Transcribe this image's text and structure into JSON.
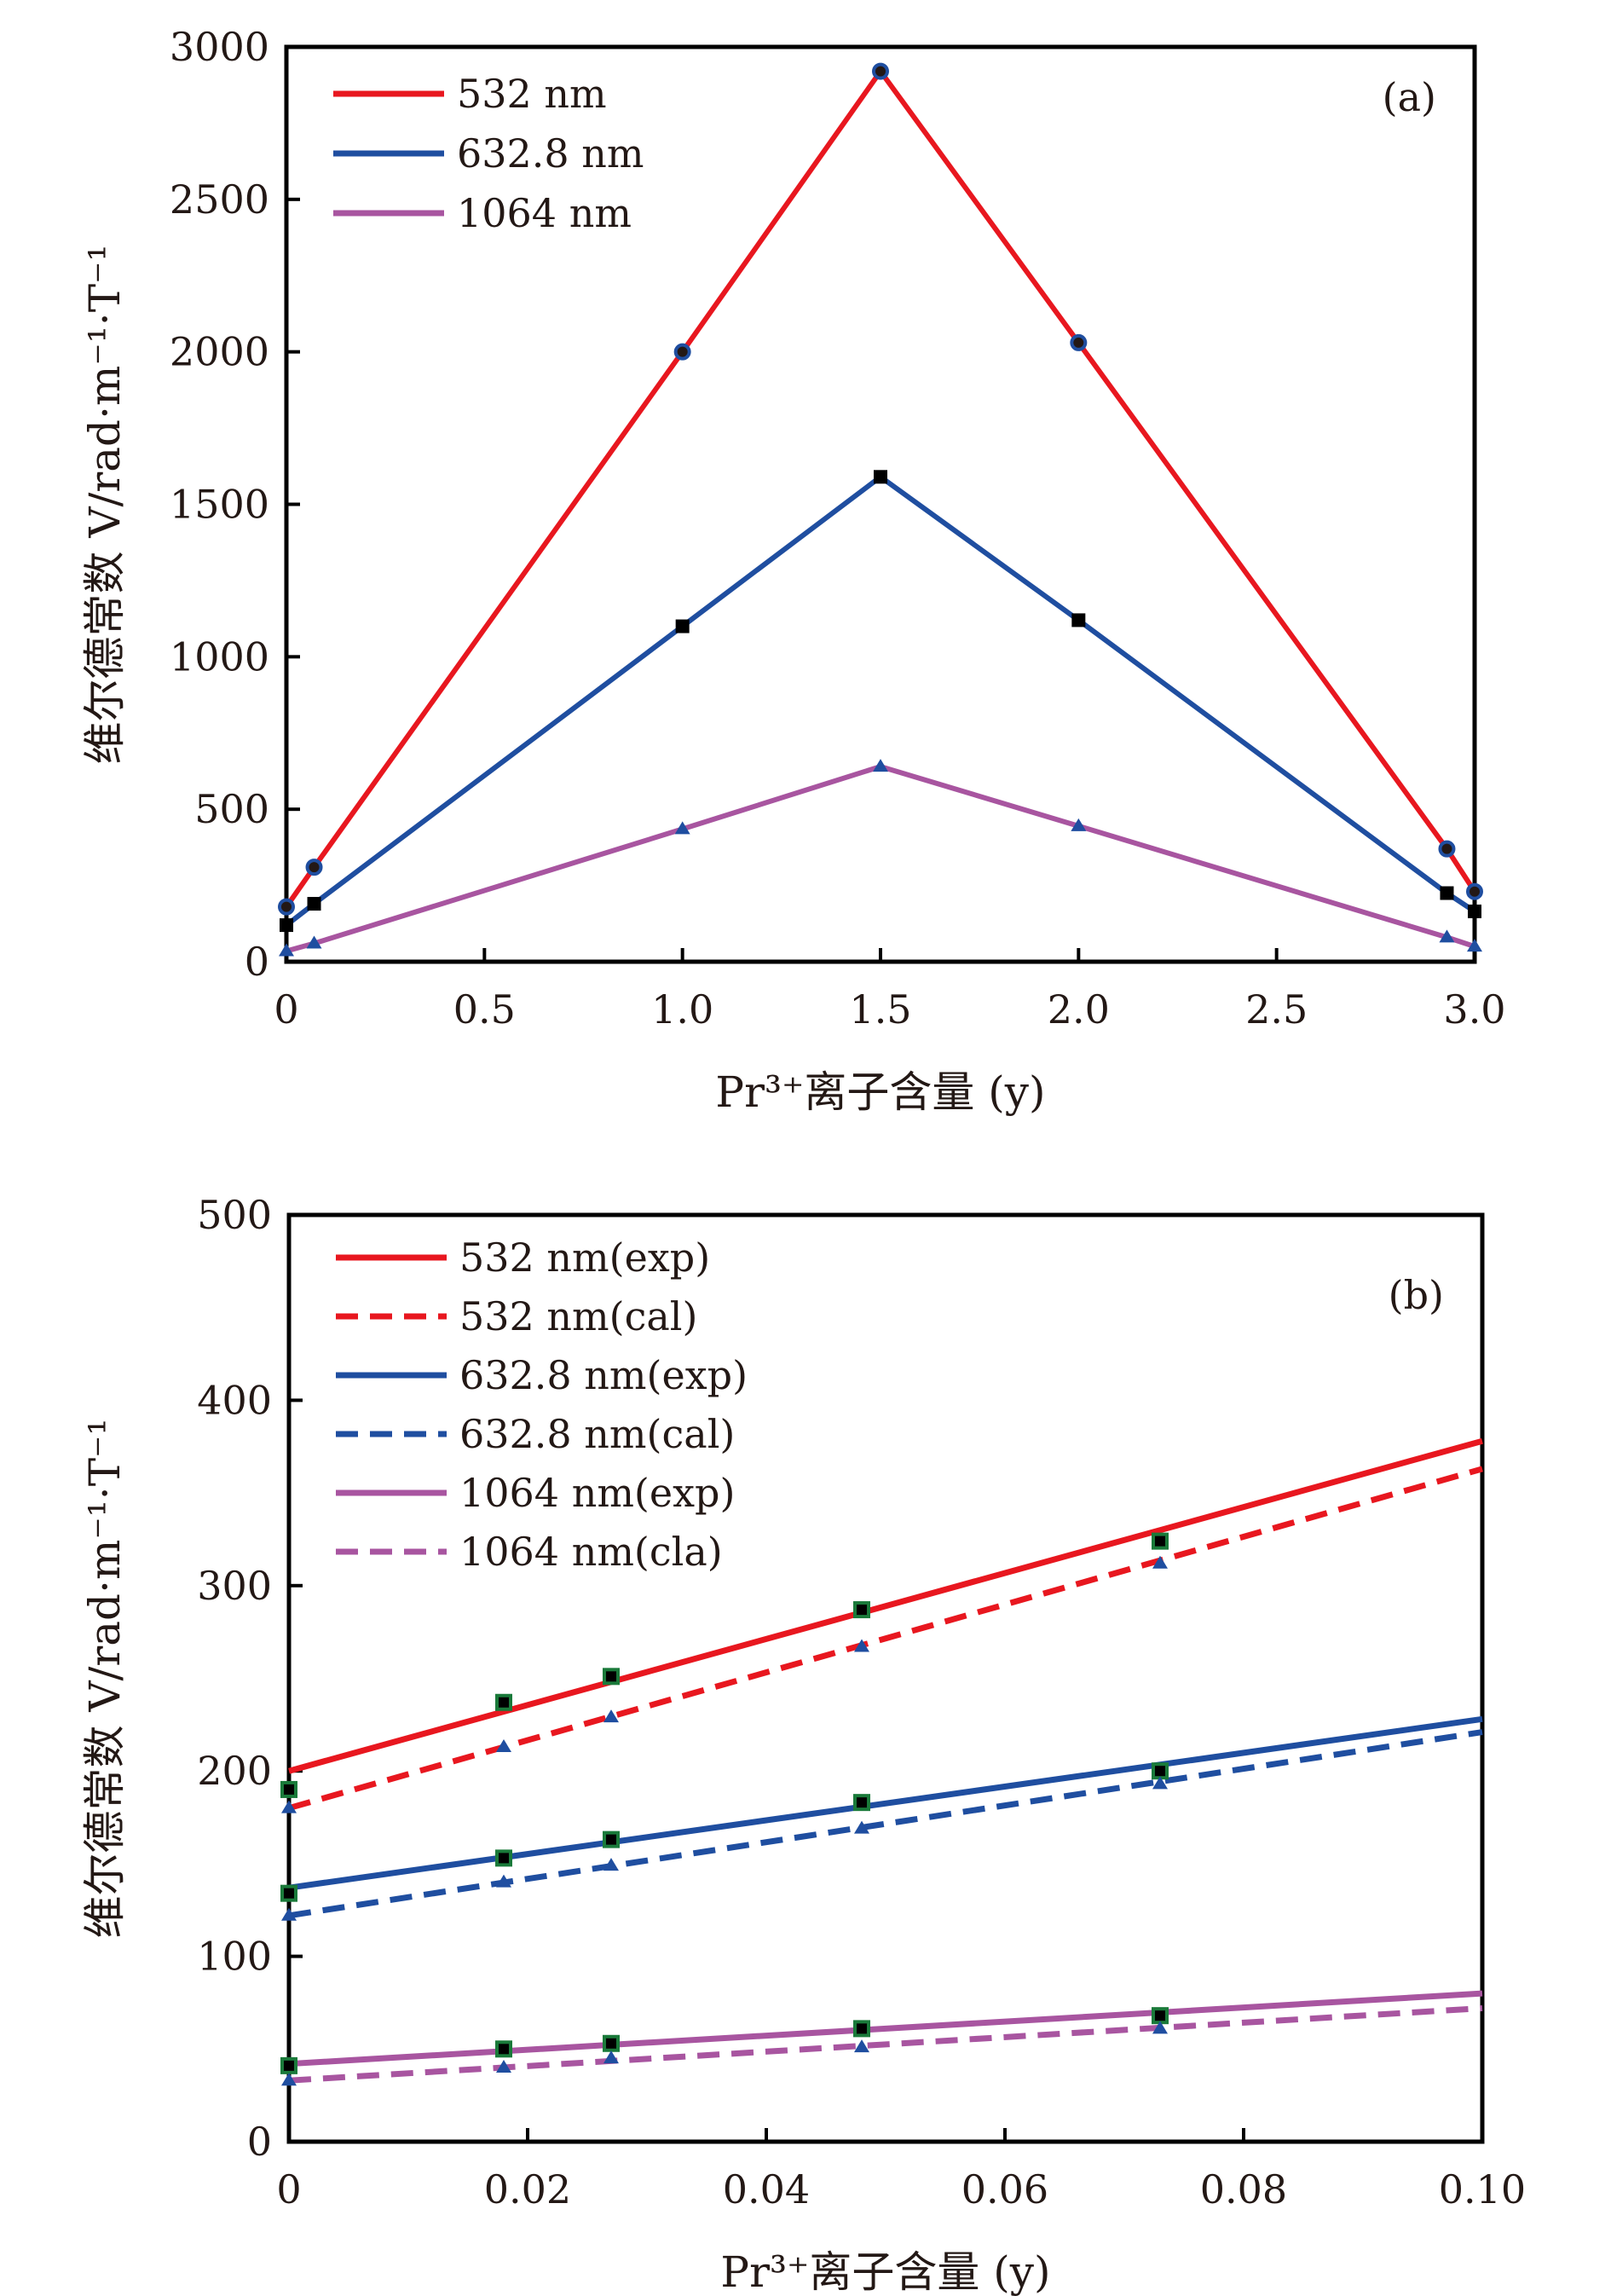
{
  "chart_data": [
    {
      "type": "line",
      "panel_label": "(a)",
      "xlabel": "Pr³⁺离子含量 (y)",
      "ylabel": "维尔德常数 V/rad·m⁻¹·T⁻¹",
      "xlim": [
        0,
        3.0
      ],
      "ylim": [
        0,
        3000
      ],
      "xticks": [
        0,
        0.5,
        1.0,
        1.5,
        2.0,
        2.5,
        3.0
      ],
      "xtick_labels": [
        "0",
        "0.5",
        "1.0",
        "1.5",
        "2.0",
        "2.5",
        "3.0"
      ],
      "yticks": [
        0,
        500,
        1000,
        1500,
        2000,
        2500,
        3000
      ],
      "ytick_labels": [
        "0",
        "500",
        "1000",
        "1500",
        "2000",
        "2500",
        "3000"
      ],
      "legend_position": "top-left",
      "x": [
        0,
        0.07,
        1.0,
        1.5,
        2.0,
        2.93,
        3.0
      ],
      "series": [
        {
          "name": "532 nm",
          "color": "#e8171f",
          "marker": "circle",
          "values": [
            180,
            310,
            2000,
            2920,
            2030,
            370,
            230
          ]
        },
        {
          "name": "632.8 nm",
          "color": "#1f4ea0",
          "marker": "square",
          "values": [
            120,
            190,
            1100,
            1590,
            1120,
            225,
            165
          ]
        },
        {
          "name": "1064 nm",
          "color": "#a855a0",
          "marker": "triangle",
          "values": [
            35,
            60,
            435,
            640,
            445,
            80,
            50
          ]
        }
      ]
    },
    {
      "type": "line",
      "panel_label": "(b)",
      "xlabel": "Pr³⁺离子含量 (y)",
      "ylabel": "维尔德常数 V/rad·m⁻¹·T⁻¹",
      "xlim": [
        0,
        0.1
      ],
      "ylim": [
        0,
        500
      ],
      "xticks": [
        0,
        0.02,
        0.04,
        0.06,
        0.08,
        0.1
      ],
      "xtick_labels": [
        "0",
        "0.02",
        "0.04",
        "0.06",
        "0.08",
        "0.10"
      ],
      "yticks": [
        0,
        100,
        200,
        300,
        400,
        500
      ],
      "ytick_labels": [
        "0",
        "100",
        "200",
        "300",
        "400",
        "500"
      ],
      "legend_position": "top-left",
      "x_points": [
        0,
        0.018,
        0.027,
        0.048,
        0.073
      ],
      "series": [
        {
          "name": "532 nm(exp)",
          "color": "#e8171f",
          "dash": false,
          "line": [
            200,
            378
          ],
          "marker": "square",
          "points": [
            190,
            237,
            251,
            287,
            324
          ]
        },
        {
          "name": "532 nm(cal)",
          "color": "#e8171f",
          "dash": true,
          "line": [
            180,
            363
          ],
          "marker": "triangle",
          "points": [
            180,
            213,
            229,
            267,
            312
          ]
        },
        {
          "name": "632.8 nm(exp)",
          "color": "#1f4ea0",
          "dash": false,
          "line": [
            137,
            228
          ],
          "marker": "square",
          "points": [
            134,
            153,
            163,
            183,
            200
          ]
        },
        {
          "name": "632.8 nm(cal)",
          "color": "#1f4ea0",
          "dash": true,
          "line": [
            122,
            221
          ],
          "marker": "triangle",
          "points": [
            122,
            140,
            149,
            169,
            193
          ]
        },
        {
          "name": "1064 nm(exp)",
          "color": "#a855a0",
          "dash": false,
          "line": [
            42,
            80
          ],
          "marker": "square",
          "points": [
            41,
            50,
            53,
            61,
            68
          ]
        },
        {
          "name": "1064 nm(cla)",
          "color": "#a855a0",
          "dash": true,
          "line": [
            33,
            72
          ],
          "marker": "triangle",
          "points": [
            33,
            40,
            45,
            51,
            61
          ]
        }
      ]
    }
  ]
}
